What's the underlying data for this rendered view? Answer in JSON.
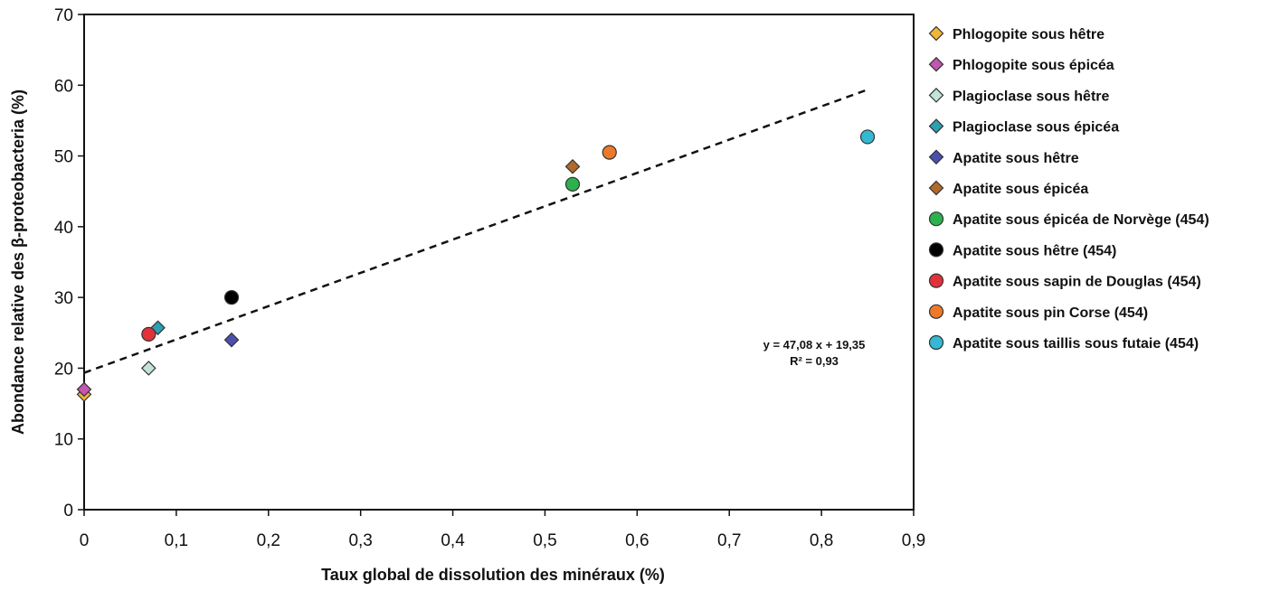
{
  "chart_data": {
    "type": "scatter",
    "xlabel": "Taux global de dissolution des minéraux (%)",
    "ylabel": "Abondance relative des β-proteobacteria (%)",
    "xlim": [
      0,
      0.9
    ],
    "ylim": [
      0,
      70
    ],
    "x_ticks": [
      0,
      0.1,
      0.2,
      0.3,
      0.4,
      0.5,
      0.6,
      0.7,
      0.8,
      0.9
    ],
    "x_tick_labels": [
      "0",
      "0,1",
      "0,2",
      "0,3",
      "0,4",
      "0,5",
      "0,6",
      "0,7",
      "0,8",
      "0,9"
    ],
    "y_ticks": [
      0,
      10,
      20,
      30,
      40,
      50,
      60,
      70
    ],
    "y_tick_labels": [
      "0",
      "10",
      "20",
      "30",
      "40",
      "50",
      "60",
      "70"
    ],
    "grid": false,
    "legend_position": "right",
    "series": [
      {
        "name": "Phlogopite sous hêtre",
        "marker": "diamond",
        "color": "#f0b63c",
        "x": [
          0.0
        ],
        "y": [
          16.3
        ]
      },
      {
        "name": "Phlogopite sous épicéa",
        "marker": "diamond",
        "color": "#c256b0",
        "x": [
          0.0
        ],
        "y": [
          17.0
        ]
      },
      {
        "name": "Plagioclase sous hêtre",
        "marker": "diamond",
        "color": "#c2e3dc",
        "x": [
          0.07
        ],
        "y": [
          20.0
        ]
      },
      {
        "name": "Plagioclase sous épicéa",
        "marker": "diamond",
        "color": "#2d9fb0",
        "x": [
          0.08
        ],
        "y": [
          25.7
        ]
      },
      {
        "name": "Apatite sous hêtre",
        "marker": "diamond",
        "color": "#4a4fb0",
        "x": [
          0.16
        ],
        "y": [
          24.0
        ]
      },
      {
        "name": "Apatite sous épicéa",
        "marker": "diamond",
        "color": "#b2692a",
        "x": [
          0.53
        ],
        "y": [
          48.5
        ]
      },
      {
        "name": "Apatite sous épicéa de Norvège (454)",
        "marker": "circle",
        "color": "#2db04e",
        "x": [
          0.53
        ],
        "y": [
          46.0
        ]
      },
      {
        "name": "Apatite sous hêtre (454)",
        "marker": "circle",
        "color": "#000000",
        "x": [
          0.16
        ],
        "y": [
          30.0
        ]
      },
      {
        "name": "Apatite sous sapin de Douglas (454)",
        "marker": "circle",
        "color": "#e0323a",
        "x": [
          0.07
        ],
        "y": [
          24.8
        ]
      },
      {
        "name": "Apatite sous pin Corse (454)",
        "marker": "circle",
        "color": "#ec7a2a",
        "x": [
          0.57
        ],
        "y": [
          50.5
        ]
      },
      {
        "name": "Apatite sous taillis sous futaie (454)",
        "marker": "circle",
        "color": "#35b8d4",
        "x": [
          0.85
        ],
        "y": [
          52.7
        ]
      }
    ],
    "trendline": {
      "slope": 47.08,
      "intercept": 19.35,
      "x_range": [
        0,
        0.85
      ],
      "style": "dashed"
    },
    "annotation": {
      "equation": "y = 47,08 x + 19,35",
      "r2": "R² = 0,93"
    }
  }
}
